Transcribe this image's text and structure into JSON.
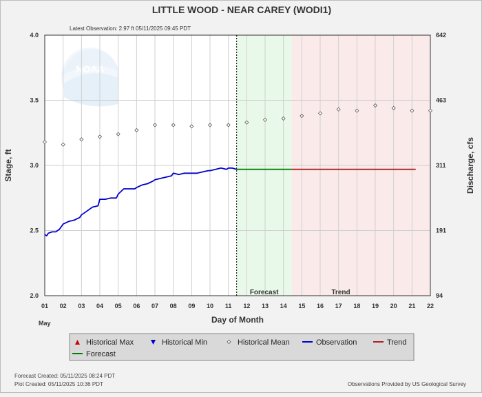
{
  "chart_data": {
    "type": "line",
    "title": "LITTLE WOOD - NEAR CAREY  (WODI1)",
    "subtitle": "Latest Observation: 2.97 ft 05/11/2025 09:45 PDT",
    "xlabel": "Day of Month",
    "ylabel": "Stage, ft",
    "y2label": "Discharge, cfs",
    "month_label": "May",
    "xlim": [
      1,
      22
    ],
    "ylim": [
      2.0,
      4.0
    ],
    "x_ticks": [
      "01",
      "02",
      "03",
      "04",
      "05",
      "06",
      "07",
      "08",
      "09",
      "10",
      "11",
      "12",
      "13",
      "14",
      "15",
      "16",
      "17",
      "18",
      "19",
      "20",
      "21",
      "22"
    ],
    "y_ticks": [
      "2.0",
      "2.5",
      "3.0",
      "3.5",
      "4.0"
    ],
    "y2_ticks": [
      {
        "stage": 2.0,
        "label": "94"
      },
      {
        "stage": 2.5,
        "label": "191"
      },
      {
        "stage": 3.0,
        "label": "311"
      },
      {
        "stage": 3.5,
        "label": "463"
      },
      {
        "stage": 4.0,
        "label": "642"
      }
    ],
    "grid": true,
    "latest_observation_day": 11.45,
    "forecast_region": {
      "start": 11.45,
      "end": 14.45,
      "label": "Forecast",
      "color": "#e9f9e9"
    },
    "trend_region": {
      "start": 14.45,
      "end": 22,
      "label": "Trend",
      "color": "#fbeaea"
    },
    "series": [
      {
        "name": "Observation",
        "color": "#0000cc",
        "x": [
          1.0,
          1.1,
          1.2,
          1.4,
          1.6,
          1.8,
          2.0,
          2.3,
          2.6,
          2.9,
          3.0,
          3.3,
          3.6,
          3.9,
          4.0,
          4.3,
          4.6,
          4.9,
          5.0,
          5.3,
          5.6,
          5.9,
          6.0,
          6.3,
          6.6,
          6.9,
          7.0,
          7.3,
          7.6,
          7.9,
          8.0,
          8.3,
          8.6,
          8.9,
          9.0,
          9.3,
          9.6,
          9.9,
          10.0,
          10.3,
          10.6,
          10.9,
          11.0,
          11.2,
          11.45
        ],
        "values": [
          2.47,
          2.46,
          2.48,
          2.49,
          2.49,
          2.51,
          2.55,
          2.57,
          2.58,
          2.6,
          2.62,
          2.65,
          2.68,
          2.69,
          2.74,
          2.74,
          2.75,
          2.75,
          2.78,
          2.82,
          2.82,
          2.82,
          2.83,
          2.85,
          2.86,
          2.88,
          2.89,
          2.9,
          2.91,
          2.92,
          2.94,
          2.93,
          2.94,
          2.94,
          2.94,
          2.94,
          2.95,
          2.96,
          2.96,
          2.97,
          2.98,
          2.97,
          2.98,
          2.98,
          2.97
        ]
      },
      {
        "name": "Forecast",
        "color": "#008000",
        "x": [
          11.45,
          14.45
        ],
        "values": [
          2.97,
          2.97
        ]
      },
      {
        "name": "Trend",
        "color": "#aa2222",
        "x": [
          14.45,
          21.2
        ],
        "values": [
          2.97,
          2.97
        ]
      },
      {
        "name": "Historical Mean",
        "color": "#555555",
        "x": [
          1.0,
          2.0,
          3.0,
          4.0,
          5.0,
          6.0,
          7.0,
          8.0,
          9.0,
          10.0,
          11.0,
          12.0,
          13.0,
          14.0,
          15.0,
          16.0,
          17.0,
          18.0,
          19.0,
          20.0,
          21.0,
          22.0
        ],
        "values": [
          3.18,
          3.16,
          3.2,
          3.22,
          3.24,
          3.27,
          3.31,
          3.31,
          3.3,
          3.31,
          3.31,
          3.33,
          3.35,
          3.36,
          3.38,
          3.4,
          3.43,
          3.42,
          3.46,
          3.44,
          3.42,
          3.42
        ]
      }
    ],
    "legend": {
      "placement": "bottom",
      "items": [
        {
          "label": "Historical Max",
          "symbol": "triangle-up",
          "color": "#cc0000"
        },
        {
          "label": "Historical Min",
          "symbol": "triangle-down",
          "color": "#0000cc"
        },
        {
          "label": "Historical Mean",
          "symbol": "diamond",
          "color": "#555555"
        },
        {
          "label": "Observation",
          "symbol": "line",
          "color": "#0000cc"
        },
        {
          "label": "Trend",
          "symbol": "line",
          "color": "#aa2222"
        },
        {
          "label": "Forecast",
          "symbol": "line",
          "color": "#008000"
        }
      ]
    }
  },
  "watermark": {
    "text": "NOAA"
  },
  "footer": {
    "forecast_created": "Forecast Created: 05/11/2025 08:24 PDT",
    "plot_created": "Plot Created: 05/11/2025 10:36 PDT",
    "provider": "Observations Provided by US Geological Survey"
  }
}
